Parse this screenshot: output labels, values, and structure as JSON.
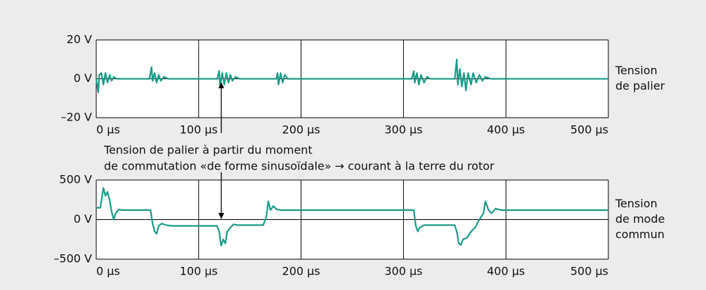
{
  "chart_data": [
    {
      "type": "line",
      "x": [
        0,
        2,
        3,
        5,
        7,
        9,
        11,
        13,
        15,
        17,
        20,
        52,
        54,
        55,
        57,
        59,
        61,
        63,
        66,
        70,
        118,
        120,
        121,
        123,
        125,
        127,
        129,
        131,
        133,
        136,
        140,
        176,
        177,
        178,
        180,
        182,
        184,
        187,
        308,
        310,
        311,
        313,
        315,
        317,
        320,
        323,
        326,
        350,
        352,
        353,
        355,
        357,
        359,
        361,
        363,
        366,
        368,
        371,
        374,
        377,
        380,
        385,
        500
      ],
      "series": [
        {
          "color": "#1a9a86",
          "values": [
            0,
            -7,
            2,
            3,
            -3,
            3,
            -2,
            2,
            -1,
            1,
            0,
            0,
            6,
            -1,
            3,
            -2,
            2,
            -1,
            1,
            0,
            0,
            4,
            -4,
            3,
            -3,
            3,
            -2,
            2,
            -1,
            1,
            0,
            0,
            3,
            -3,
            3,
            -2,
            2,
            0,
            0,
            4,
            -2,
            3,
            -3,
            2,
            -2,
            1,
            0,
            0,
            10,
            -3,
            5,
            -4,
            3,
            -6,
            3,
            -3,
            3,
            -2,
            2,
            -1,
            1,
            0,
            0
          ]
        }
      ],
      "xlim": [
        0,
        500
      ],
      "ylim": [
        -20,
        20
      ],
      "xticks": [
        {
          "value": 0,
          "label": "0 µs"
        },
        {
          "value": 100,
          "label": "100 µs"
        },
        {
          "value": 200,
          "label": "200 µs"
        },
        {
          "value": 300,
          "label": "300 µs"
        },
        {
          "value": 400,
          "label": "400 µs"
        },
        {
          "value": 500,
          "label": "500 µs"
        }
      ],
      "yticks": [
        {
          "value": 20,
          "label": "20 V"
        },
        {
          "value": 0,
          "label": "0 V"
        },
        {
          "value": -20,
          "label": "–20 V"
        }
      ],
      "side_label": [
        "Tension",
        "de palier"
      ]
    },
    {
      "type": "line",
      "x": [
        0,
        4,
        7,
        9,
        11,
        13,
        15,
        17,
        19,
        22,
        25,
        53,
        55,
        57,
        59,
        61,
        64,
        68,
        75,
        118,
        120,
        122,
        124,
        126,
        128,
        131,
        134,
        138,
        163,
        166,
        168,
        170,
        173,
        176,
        180,
        310,
        312,
        314,
        316,
        320,
        350,
        352,
        354,
        356,
        358,
        362,
        366,
        370,
        374,
        378,
        380,
        383,
        386,
        390,
        395,
        500
      ],
      "series": [
        {
          "color": "#1a9a86",
          "values": [
            150,
            150,
            400,
            300,
            350,
            250,
            100,
            0,
            80,
            130,
            120,
            120,
            -50,
            -150,
            -180,
            -80,
            -50,
            -70,
            -80,
            -80,
            -150,
            -330,
            -250,
            -300,
            -150,
            -100,
            -60,
            -70,
            -70,
            30,
            230,
            120,
            170,
            130,
            120,
            120,
            -80,
            -150,
            -100,
            -70,
            -70,
            -150,
            -300,
            -320,
            -250,
            -230,
            -150,
            -100,
            0,
            80,
            230,
            120,
            80,
            140,
            120,
            120
          ]
        }
      ],
      "xlim": [
        0,
        500
      ],
      "ylim": [
        -500,
        500
      ],
      "xticks": [
        {
          "value": 0,
          "label": "0 µs"
        },
        {
          "value": 100,
          "label": "100 µs"
        },
        {
          "value": 200,
          "label": "200 µs"
        },
        {
          "value": 300,
          "label": "300 µs"
        },
        {
          "value": 400,
          "label": "400 µs"
        },
        {
          "value": 500,
          "label": "500 µs"
        }
      ],
      "yticks": [
        {
          "value": 500,
          "label": "500 V"
        },
        {
          "value": 0,
          "label": "0 V"
        },
        {
          "value": -500,
          "label": "–500 V"
        }
      ],
      "side_label": [
        "Tension",
        "de mode",
        "commun"
      ]
    }
  ],
  "annotation": [
    "Tension de palier à partir du moment",
    "de commutation «de forme sinusoïdale» → courant à la terre du rotor"
  ]
}
